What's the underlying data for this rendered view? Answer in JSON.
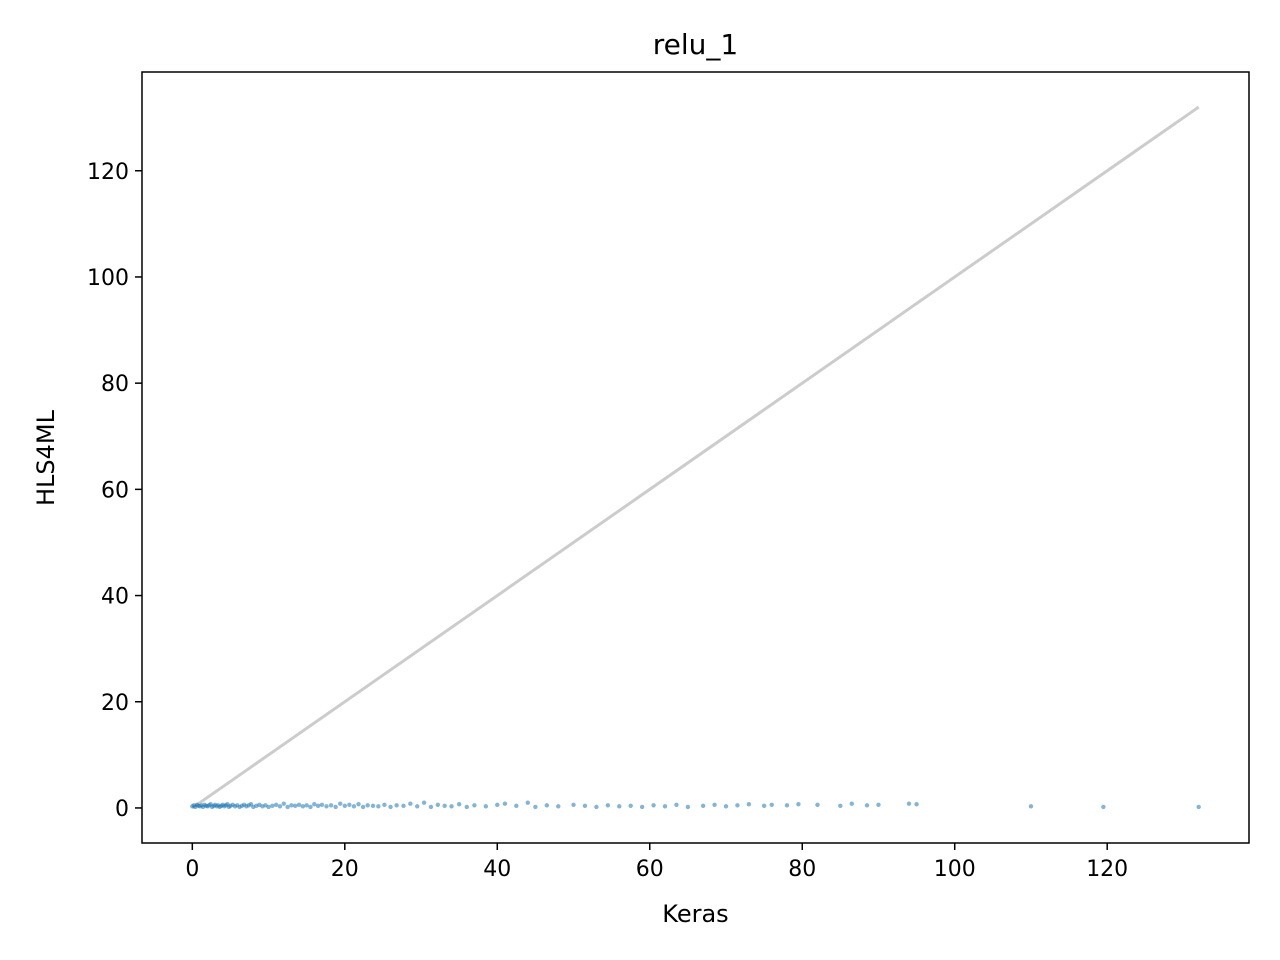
{
  "chart_data": {
    "type": "scatter",
    "title": "relu_1",
    "xlabel": "Keras",
    "ylabel": "HLS4ML",
    "xlim": [
      -6.6,
      138.6
    ],
    "ylim": [
      -6.6,
      138.6
    ],
    "xticks": [
      0,
      20,
      40,
      60,
      80,
      100,
      120
    ],
    "yticks": [
      0,
      20,
      40,
      60,
      80,
      100,
      120
    ],
    "xtick_labels": [
      "0",
      "20",
      "40",
      "60",
      "80",
      "100",
      "120"
    ],
    "ytick_labels": [
      "0",
      "20",
      "40",
      "60",
      "80",
      "100",
      "120"
    ],
    "grid": false,
    "legend": "none",
    "reference_line": {
      "x": [
        0,
        132
      ],
      "y": [
        0,
        132
      ],
      "color": "#cccccc"
    },
    "series": [
      {
        "color": "#1f77b4",
        "x": [
          0.0,
          0.2,
          0.4,
          0.6,
          0.8,
          1.0,
          1.2,
          1.4,
          1.6,
          1.8,
          2.0,
          2.2,
          2.4,
          2.6,
          2.8,
          3.0,
          3.2,
          3.4,
          3.6,
          3.8,
          4.0,
          4.2,
          4.4,
          4.6,
          4.8,
          5.0,
          5.3,
          5.6,
          5.9,
          6.2,
          6.5,
          6.8,
          7.1,
          7.4,
          7.7,
          8.0,
          8.4,
          8.8,
          9.2,
          9.6,
          10.0,
          10.5,
          11.0,
          11.5,
          12.0,
          12.5,
          13.0,
          13.5,
          14.0,
          14.5,
          15.0,
          15.5,
          16.0,
          16.5,
          17.0,
          17.6,
          18.2,
          18.8,
          19.4,
          20.0,
          20.6,
          21.2,
          21.8,
          22.4,
          23.0,
          23.7,
          24.4,
          25.2,
          26.0,
          26.8,
          27.7,
          28.6,
          29.5,
          30.4,
          31.3,
          32.2,
          33.1,
          34.0,
          35.0,
          36.0,
          37.0,
          38.5,
          40.0,
          41.0,
          42.5,
          44.0,
          45.0,
          46.5,
          48.0,
          50.0,
          51.5,
          53.0,
          54.5,
          56.0,
          57.5,
          59.0,
          60.5,
          62.0,
          63.5,
          65.0,
          67.0,
          68.5,
          70.0,
          71.5,
          73.0,
          75.0,
          76.0,
          78.0,
          79.5,
          82.0,
          85.0,
          86.5,
          88.5,
          90.0,
          94.0,
          95.0,
          110.0,
          119.5,
          132.0
        ],
        "y": [
          0.3,
          0.5,
          0.2,
          0.6,
          0.4,
          0.3,
          0.5,
          0.2,
          0.6,
          0.4,
          0.3,
          0.5,
          0.7,
          0.2,
          0.4,
          0.6,
          0.3,
          0.5,
          0.2,
          0.4,
          0.6,
          0.3,
          0.5,
          0.7,
          0.2,
          0.4,
          0.6,
          0.3,
          0.5,
          0.2,
          0.4,
          0.6,
          0.3,
          0.5,
          0.7,
          0.2,
          0.4,
          0.6,
          0.3,
          0.5,
          0.2,
          0.4,
          0.6,
          0.3,
          0.8,
          0.2,
          0.5,
          0.4,
          0.6,
          0.3,
          0.5,
          0.2,
          0.7,
          0.4,
          0.6,
          0.3,
          0.5,
          0.2,
          0.8,
          0.4,
          0.6,
          0.3,
          0.7,
          0.2,
          0.5,
          0.4,
          0.3,
          0.6,
          0.2,
          0.5,
          0.4,
          0.8,
          0.3,
          1.0,
          0.2,
          0.6,
          0.4,
          0.3,
          0.7,
          0.2,
          0.5,
          0.3,
          0.6,
          0.8,
          0.4,
          1.0,
          0.2,
          0.5,
          0.3,
          0.6,
          0.4,
          0.2,
          0.5,
          0.3,
          0.4,
          0.2,
          0.5,
          0.3,
          0.6,
          0.2,
          0.4,
          0.6,
          0.3,
          0.5,
          0.7,
          0.4,
          0.6,
          0.5,
          0.7,
          0.6,
          0.4,
          0.8,
          0.5,
          0.6,
          0.8,
          0.7,
          0.3,
          0.2,
          0.2
        ]
      }
    ]
  }
}
